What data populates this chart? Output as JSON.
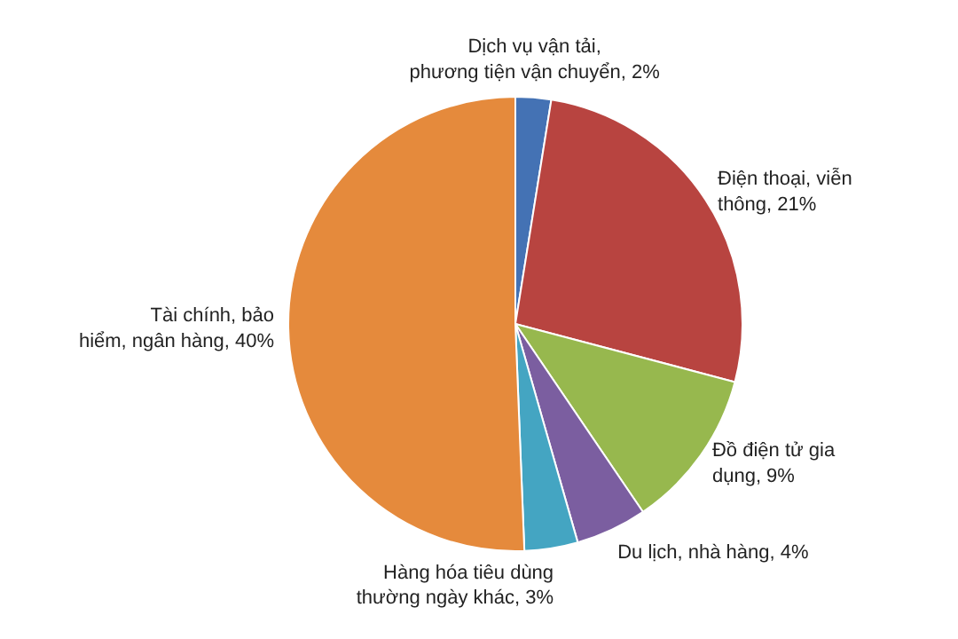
{
  "chart_data": {
    "type": "pie",
    "categories": [
      "Dịch vụ vận tải, phương tiện vận chuyển",
      "Điện thoại, viễn thông",
      "Đồ điện tử gia dụng",
      "Du lịch, nhà hàng",
      "Hàng hóa tiêu dùng thường ngày khác",
      "Tài chính, bảo hiểm, ngân hàng"
    ],
    "values": [
      2,
      21,
      9,
      4,
      3,
      40
    ],
    "value_labels": [
      "2%",
      "21%",
      "9%",
      "4%",
      "3%",
      "40%"
    ],
    "colors": [
      "#4472b4",
      "#b84440",
      "#97b84e",
      "#7b5ea0",
      "#44a5c2",
      "#e58a3c"
    ]
  }
}
